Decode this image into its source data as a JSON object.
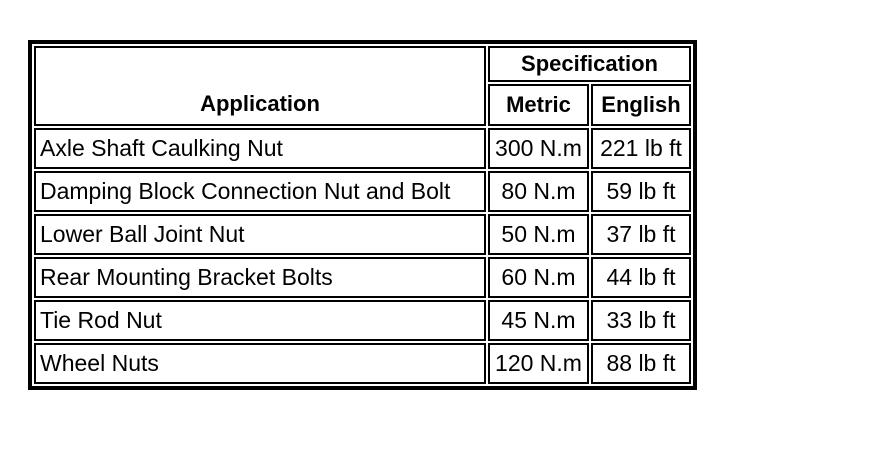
{
  "page": {
    "background_color": "#ffffff",
    "text_color": "#000000",
    "border_color": "#000000"
  },
  "table": {
    "header": {
      "application_label": "Application",
      "specification_label": "Specification",
      "metric_label": "Metric",
      "english_label": "English"
    },
    "rows": [
      {
        "application": "Axle Shaft Caulking Nut",
        "metric": "300 N.m",
        "english": "221 lb ft"
      },
      {
        "application": "Damping Block Connection Nut and Bolt",
        "metric": "80 N.m",
        "english": "59 lb ft"
      },
      {
        "application": "Lower Ball Joint Nut",
        "metric": "50 N.m",
        "english": "37 lb ft"
      },
      {
        "application": "Rear Mounting Bracket Bolts",
        "metric": "60 N.m",
        "english": "44 lb ft"
      },
      {
        "application": "Tie Rod Nut",
        "metric": "45 N.m",
        "english": "33 lb ft"
      },
      {
        "application": "Wheel Nuts",
        "metric": "120 N.m",
        "english": "88 lb ft"
      }
    ]
  }
}
